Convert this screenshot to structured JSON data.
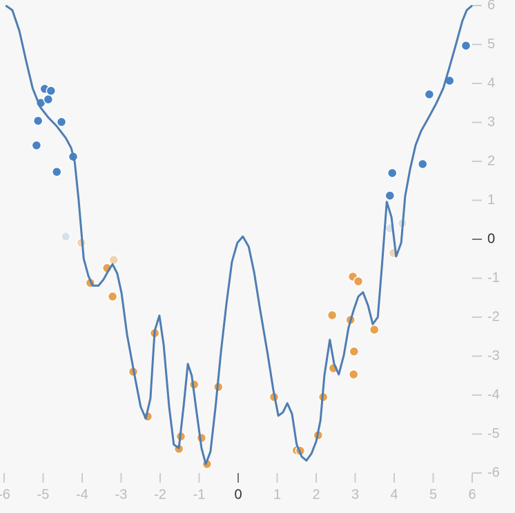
{
  "chart_data": {
    "type": "scatter",
    "xlim": [
      -6,
      6
    ],
    "ylim": [
      -6,
      6
    ],
    "xticks": [
      -6,
      -5,
      -4,
      -3,
      -2,
      -1,
      0,
      1,
      2,
      3,
      4,
      5,
      6
    ],
    "yticks": [
      -6,
      -5,
      -4,
      -3,
      -2,
      -1,
      0,
      1,
      2,
      3,
      4,
      5,
      6
    ],
    "series": [
      {
        "type": "line",
        "color": "#4e7db3",
        "x": [
          -5.96,
          -5.79,
          -5.61,
          -5.43,
          -5.27,
          -5.08,
          -4.87,
          -4.65,
          -4.42,
          -4.28,
          -4.19,
          -4.09,
          -3.96,
          -3.84,
          -3.73,
          -3.58,
          -3.45,
          -3.33,
          -3.22,
          -3.1,
          -2.99,
          -2.85,
          -2.67,
          -2.5,
          -2.37,
          -2.25,
          -2.14,
          -2.02,
          -1.91,
          -1.77,
          -1.65,
          -1.52,
          -1.4,
          -1.29,
          -1.19,
          -1.06,
          -0.94,
          -0.83,
          -0.71,
          -0.58,
          -0.44,
          -0.3,
          -0.16,
          -0.02,
          0.12,
          0.27,
          0.41,
          0.55,
          0.76,
          0.9,
          1.03,
          1.15,
          1.26,
          1.38,
          1.5,
          1.63,
          1.75,
          1.88,
          2.0,
          2.11,
          2.21,
          2.35,
          2.46,
          2.58,
          2.71,
          2.83,
          2.96,
          3.08,
          3.2,
          3.33,
          3.45,
          3.58,
          3.68,
          3.81,
          3.93,
          4.05,
          4.18,
          4.28,
          4.41,
          4.55,
          4.69,
          4.87,
          5.08,
          5.26,
          5.43,
          5.58,
          5.75,
          5.86,
          6.0
        ],
        "values": [
          6.0,
          5.88,
          5.35,
          4.55,
          3.88,
          3.4,
          3.13,
          2.9,
          2.6,
          2.34,
          1.98,
          1.01,
          -0.5,
          -0.94,
          -1.19,
          -1.19,
          -1.03,
          -0.81,
          -0.64,
          -0.88,
          -1.38,
          -2.44,
          -3.42,
          -4.3,
          -4.6,
          -4.09,
          -2.35,
          -1.96,
          -2.71,
          -4.3,
          -5.27,
          -5.36,
          -4.3,
          -3.2,
          -3.5,
          -4.48,
          -5.36,
          -5.77,
          -5.45,
          -4.3,
          -2.88,
          -1.65,
          -0.58,
          -0.09,
          0.07,
          -0.19,
          -0.85,
          -1.73,
          -2.97,
          -3.86,
          -4.53,
          -4.44,
          -4.21,
          -4.48,
          -5.27,
          -5.58,
          -5.68,
          -5.5,
          -5.19,
          -4.65,
          -3.5,
          -2.58,
          -3.2,
          -3.47,
          -2.97,
          -2.27,
          -1.82,
          -1.47,
          -1.36,
          -1.7,
          -2.18,
          -2.0,
          -0.76,
          0.96,
          0.57,
          -0.44,
          -0.09,
          1.1,
          1.81,
          2.42,
          2.78,
          3.1,
          3.49,
          3.88,
          4.46,
          4.99,
          5.61,
          5.88,
          6.0
        ]
      },
      {
        "type": "points",
        "color": "#4a83c4",
        "x": [
          -5.17,
          -5.13,
          -5.06,
          -4.96,
          -4.87,
          -4.8,
          -4.53,
          -4.65,
          -4.23,
          3.89,
          3.95,
          4.73,
          4.9,
          5.42,
          5.84
        ],
        "values": [
          2.41,
          3.04,
          3.5,
          3.86,
          3.59,
          3.81,
          3.01,
          1.73,
          2.12,
          1.12,
          1.7,
          1.93,
          3.72,
          4.07,
          4.97
        ]
      },
      {
        "type": "points",
        "color": "#d6e1ec",
        "x": [
          -4.42,
          3.89,
          4.21
        ],
        "values": [
          0.07,
          0.28,
          0.41
        ]
      },
      {
        "type": "points",
        "color": "#efd3b2",
        "x": [
          -4.02,
          -3.19,
          3.98
        ],
        "values": [
          -0.09,
          -0.53,
          -0.35
        ]
      },
      {
        "type": "points",
        "color": "#e8a04f",
        "x": [
          -3.79,
          -3.36,
          -3.22,
          -2.69,
          -2.32,
          -2.14,
          -1.52,
          -1.47,
          -1.13,
          -0.94,
          -0.8,
          -0.51,
          0.92,
          1.5,
          1.59,
          2.05,
          2.18,
          2.41,
          2.44,
          2.88,
          2.94,
          2.97,
          2.96,
          3.08,
          3.49
        ],
        "values": [
          -1.12,
          -0.74,
          -1.47,
          -3.4,
          -4.55,
          -2.41,
          -5.38,
          -5.06,
          -3.73,
          -5.1,
          -5.77,
          -3.79,
          -4.05,
          -5.42,
          -5.43,
          -5.03,
          -4.05,
          -1.95,
          -3.31,
          -2.07,
          -0.96,
          -2.88,
          -3.47,
          -1.08,
          -2.32
        ]
      }
    ]
  }
}
